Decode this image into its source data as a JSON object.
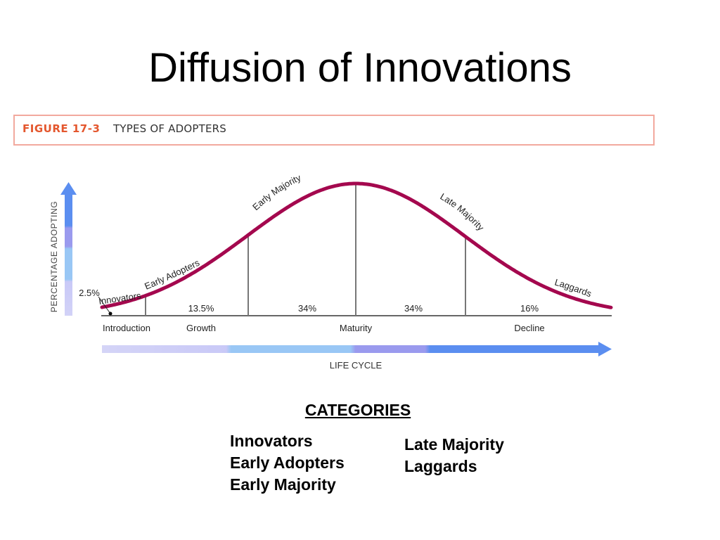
{
  "title": "Diffusion of Innovations",
  "figure": {
    "number": "FIGURE 17-3",
    "caption": "TYPES OF ADOPTERS",
    "y_axis_label": "PERCENTAGE ADOPTING",
    "x_axis_label": "LIFE CYCLE",
    "curve_labels": {
      "innovators": "Innovators",
      "early_adopters": "Early Adopters",
      "early_majority": "Early Majority",
      "late_majority": "Late Majority",
      "laggards": "Laggards"
    },
    "segments": [
      {
        "label": "2.5%",
        "share": 2.5
      },
      {
        "label": "13.5%",
        "share": 13.5
      },
      {
        "label": "34%",
        "share": 34
      },
      {
        "label": "34%",
        "share": 34
      },
      {
        "label": "16%",
        "share": 16
      }
    ],
    "stages": [
      "Introduction",
      "Growth",
      "Maturity",
      "Decline"
    ],
    "colors": {
      "curve": "#a4084e",
      "axis": "#666666",
      "divider": "#777777",
      "arrow_light": "#c9c9f7",
      "arrow_mid": "#99c7f5",
      "arrow_purple": "#9999ee",
      "arrow_blue": "#5b8ef0"
    }
  },
  "categories": {
    "heading": "CATEGORIES",
    "left": [
      "Innovators",
      "Early Adopters",
      "Early Majority"
    ],
    "right": [
      "Late Majority",
      "Laggards"
    ]
  }
}
